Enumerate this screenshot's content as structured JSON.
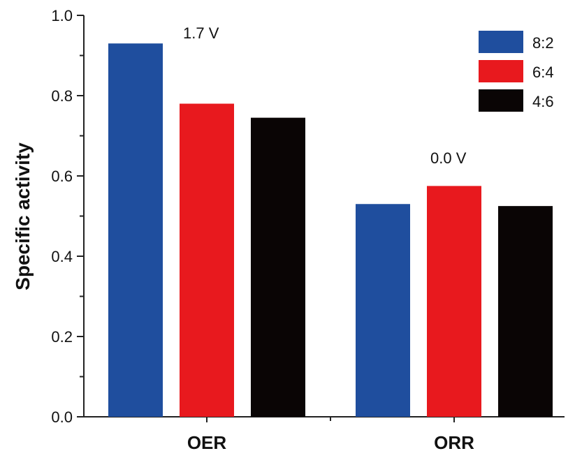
{
  "chart_data": {
    "type": "bar",
    "categories": [
      "OER",
      "ORR"
    ],
    "series": [
      {
        "name": "8:2",
        "values": [
          0.93,
          0.53
        ],
        "color": "#1f4e9e"
      },
      {
        "name": "6:4",
        "values": [
          0.78,
          0.575
        ],
        "color": "#e8191e"
      },
      {
        "name": "4:6",
        "values": [
          0.745,
          0.525
        ],
        "color": "#0a0505"
      }
    ],
    "ylabel": "Specific activity",
    "ylim": [
      0.0,
      1.0
    ],
    "yticks": [
      "0.0",
      "0.2",
      "0.4",
      "0.6",
      "0.8",
      "1.0"
    ],
    "grid": false,
    "legend": "top-right",
    "annotations": [
      {
        "category": "OER",
        "text": "1.7 V"
      },
      {
        "category": "ORR",
        "text": "0.0 V"
      }
    ]
  }
}
